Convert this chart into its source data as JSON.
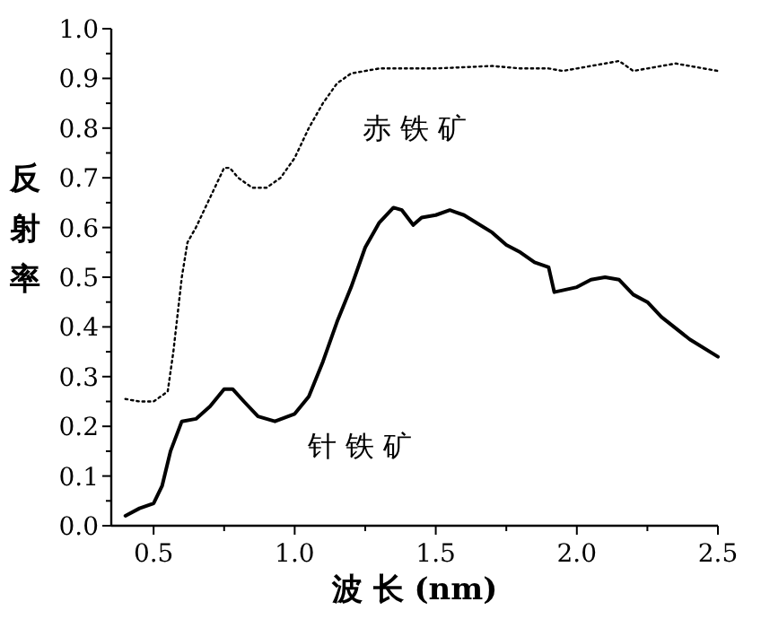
{
  "chart_data": {
    "type": "line",
    "xlabel": "波 长 (nm)",
    "ylabel": "反射率",
    "xlim": [
      0.35,
      2.5
    ],
    "ylim": [
      0,
      1.0
    ],
    "xticks": [
      {
        "value": 0.5,
        "label": "0.5"
      },
      {
        "value": 0.75,
        "label": null
      },
      {
        "value": 1.0,
        "label": "1.0"
      },
      {
        "value": 1.25,
        "label": null
      },
      {
        "value": 1.5,
        "label": "1.5"
      },
      {
        "value": 1.75,
        "label": null
      },
      {
        "value": 2.0,
        "label": "2.0"
      },
      {
        "value": 2.25,
        "label": null
      },
      {
        "value": 2.5,
        "label": "2.5"
      }
    ],
    "yticks": [
      {
        "value": 0,
        "label": "0.0"
      },
      {
        "value": 0.05,
        "label": null
      },
      0.1,
      {
        "value": 0.15,
        "label": null
      },
      0.2,
      {
        "value": 0.25,
        "label": null
      },
      0.3,
      {
        "value": 0.35,
        "label": null
      },
      0.4,
      {
        "value": 0.45,
        "label": null
      },
      0.5,
      {
        "value": 0.55,
        "label": null
      },
      0.6,
      {
        "value": 0.65,
        "label": null
      },
      0.7,
      {
        "value": 0.75,
        "label": null
      },
      0.8,
      {
        "value": 0.85,
        "label": null
      },
      0.9,
      {
        "value": 0.95,
        "label": null
      },
      {
        "value": 1.0,
        "label": "1.0"
      }
    ],
    "grid": false,
    "marker": "none",
    "series": [
      {
        "name": "赤 铁 矿",
        "color": "#000000",
        "line_style": "dotted",
        "x": [
          0.4,
          0.45,
          0.5,
          0.55,
          0.57,
          0.6,
          0.62,
          0.65,
          0.7,
          0.75,
          0.77,
          0.8,
          0.85,
          0.9,
          0.95,
          1.0,
          1.05,
          1.1,
          1.15,
          1.2,
          1.3,
          1.5,
          1.7,
          1.8,
          1.9,
          1.95,
          2.0,
          2.1,
          2.15,
          2.2,
          2.25,
          2.35,
          2.45,
          2.5
        ],
        "values": [
          0.255,
          0.25,
          0.25,
          0.27,
          0.35,
          0.5,
          0.57,
          0.6,
          0.66,
          0.72,
          0.72,
          0.7,
          0.68,
          0.68,
          0.7,
          0.74,
          0.8,
          0.85,
          0.89,
          0.91,
          0.92,
          0.92,
          0.925,
          0.92,
          0.92,
          0.915,
          0.92,
          0.93,
          0.935,
          0.915,
          0.92,
          0.93,
          0.92,
          0.915
        ]
      },
      {
        "name": "针 铁 矿",
        "color": "#000000",
        "line_style": "solid",
        "x": [
          0.4,
          0.45,
          0.5,
          0.53,
          0.56,
          0.6,
          0.65,
          0.7,
          0.75,
          0.78,
          0.82,
          0.87,
          0.93,
          1.0,
          1.05,
          1.1,
          1.15,
          1.2,
          1.25,
          1.3,
          1.35,
          1.38,
          1.42,
          1.45,
          1.5,
          1.55,
          1.6,
          1.7,
          1.75,
          1.8,
          1.85,
          1.9,
          1.92,
          2.0,
          2.05,
          2.1,
          2.15,
          2.2,
          2.25,
          2.3,
          2.4,
          2.5
        ],
        "values": [
          0.02,
          0.035,
          0.045,
          0.08,
          0.15,
          0.21,
          0.215,
          0.24,
          0.275,
          0.275,
          0.25,
          0.22,
          0.21,
          0.225,
          0.26,
          0.33,
          0.41,
          0.48,
          0.56,
          0.61,
          0.64,
          0.635,
          0.605,
          0.62,
          0.625,
          0.635,
          0.625,
          0.59,
          0.565,
          0.55,
          0.53,
          0.52,
          0.47,
          0.48,
          0.495,
          0.5,
          0.495,
          0.465,
          0.45,
          0.42,
          0.375,
          0.34
        ]
      }
    ]
  }
}
